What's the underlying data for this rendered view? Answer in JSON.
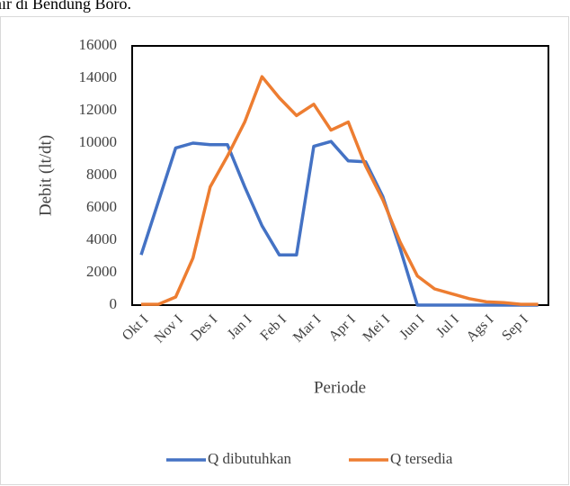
{
  "text_above": "air di Bendung Boro.",
  "chart_data": {
    "type": "line",
    "y_label": "Debit (lt/dt)",
    "x_label": "Periode",
    "categories": [
      "Okt I",
      null,
      "Nov I",
      null,
      "Des I",
      null,
      "Jan I",
      null,
      "Feb I",
      null,
      "Mar I",
      null,
      "Apr I",
      null,
      "Mei I",
      null,
      "Jun I",
      null,
      "Jul I",
      null,
      "Ags I",
      null,
      "Sep I",
      null
    ],
    "series": [
      {
        "name": "Q dibutuhkan",
        "color": "#4472c4",
        "values": [
          3100,
          6400,
          9700,
          10000,
          9900,
          9900,
          7300,
          4900,
          3100,
          3100,
          9800,
          10100,
          8900,
          8850,
          6700,
          3500,
          0,
          0,
          0,
          0,
          0,
          0,
          0,
          0
        ]
      },
      {
        "name": "Q tersedia",
        "color": "#ed7d31",
        "values": [
          50,
          50,
          500,
          2900,
          7300,
          9200,
          11300,
          14100,
          12800,
          11700,
          12400,
          10800,
          11300,
          8600,
          6500,
          3900,
          1800,
          1000,
          700,
          400,
          200,
          150,
          50,
          50
        ]
      }
    ],
    "ylim": [
      0,
      16000
    ],
    "yticks": [
      0,
      2000,
      4000,
      6000,
      8000,
      10000,
      12000,
      14000,
      16000
    ],
    "grid": false,
    "legend": "bottom"
  }
}
